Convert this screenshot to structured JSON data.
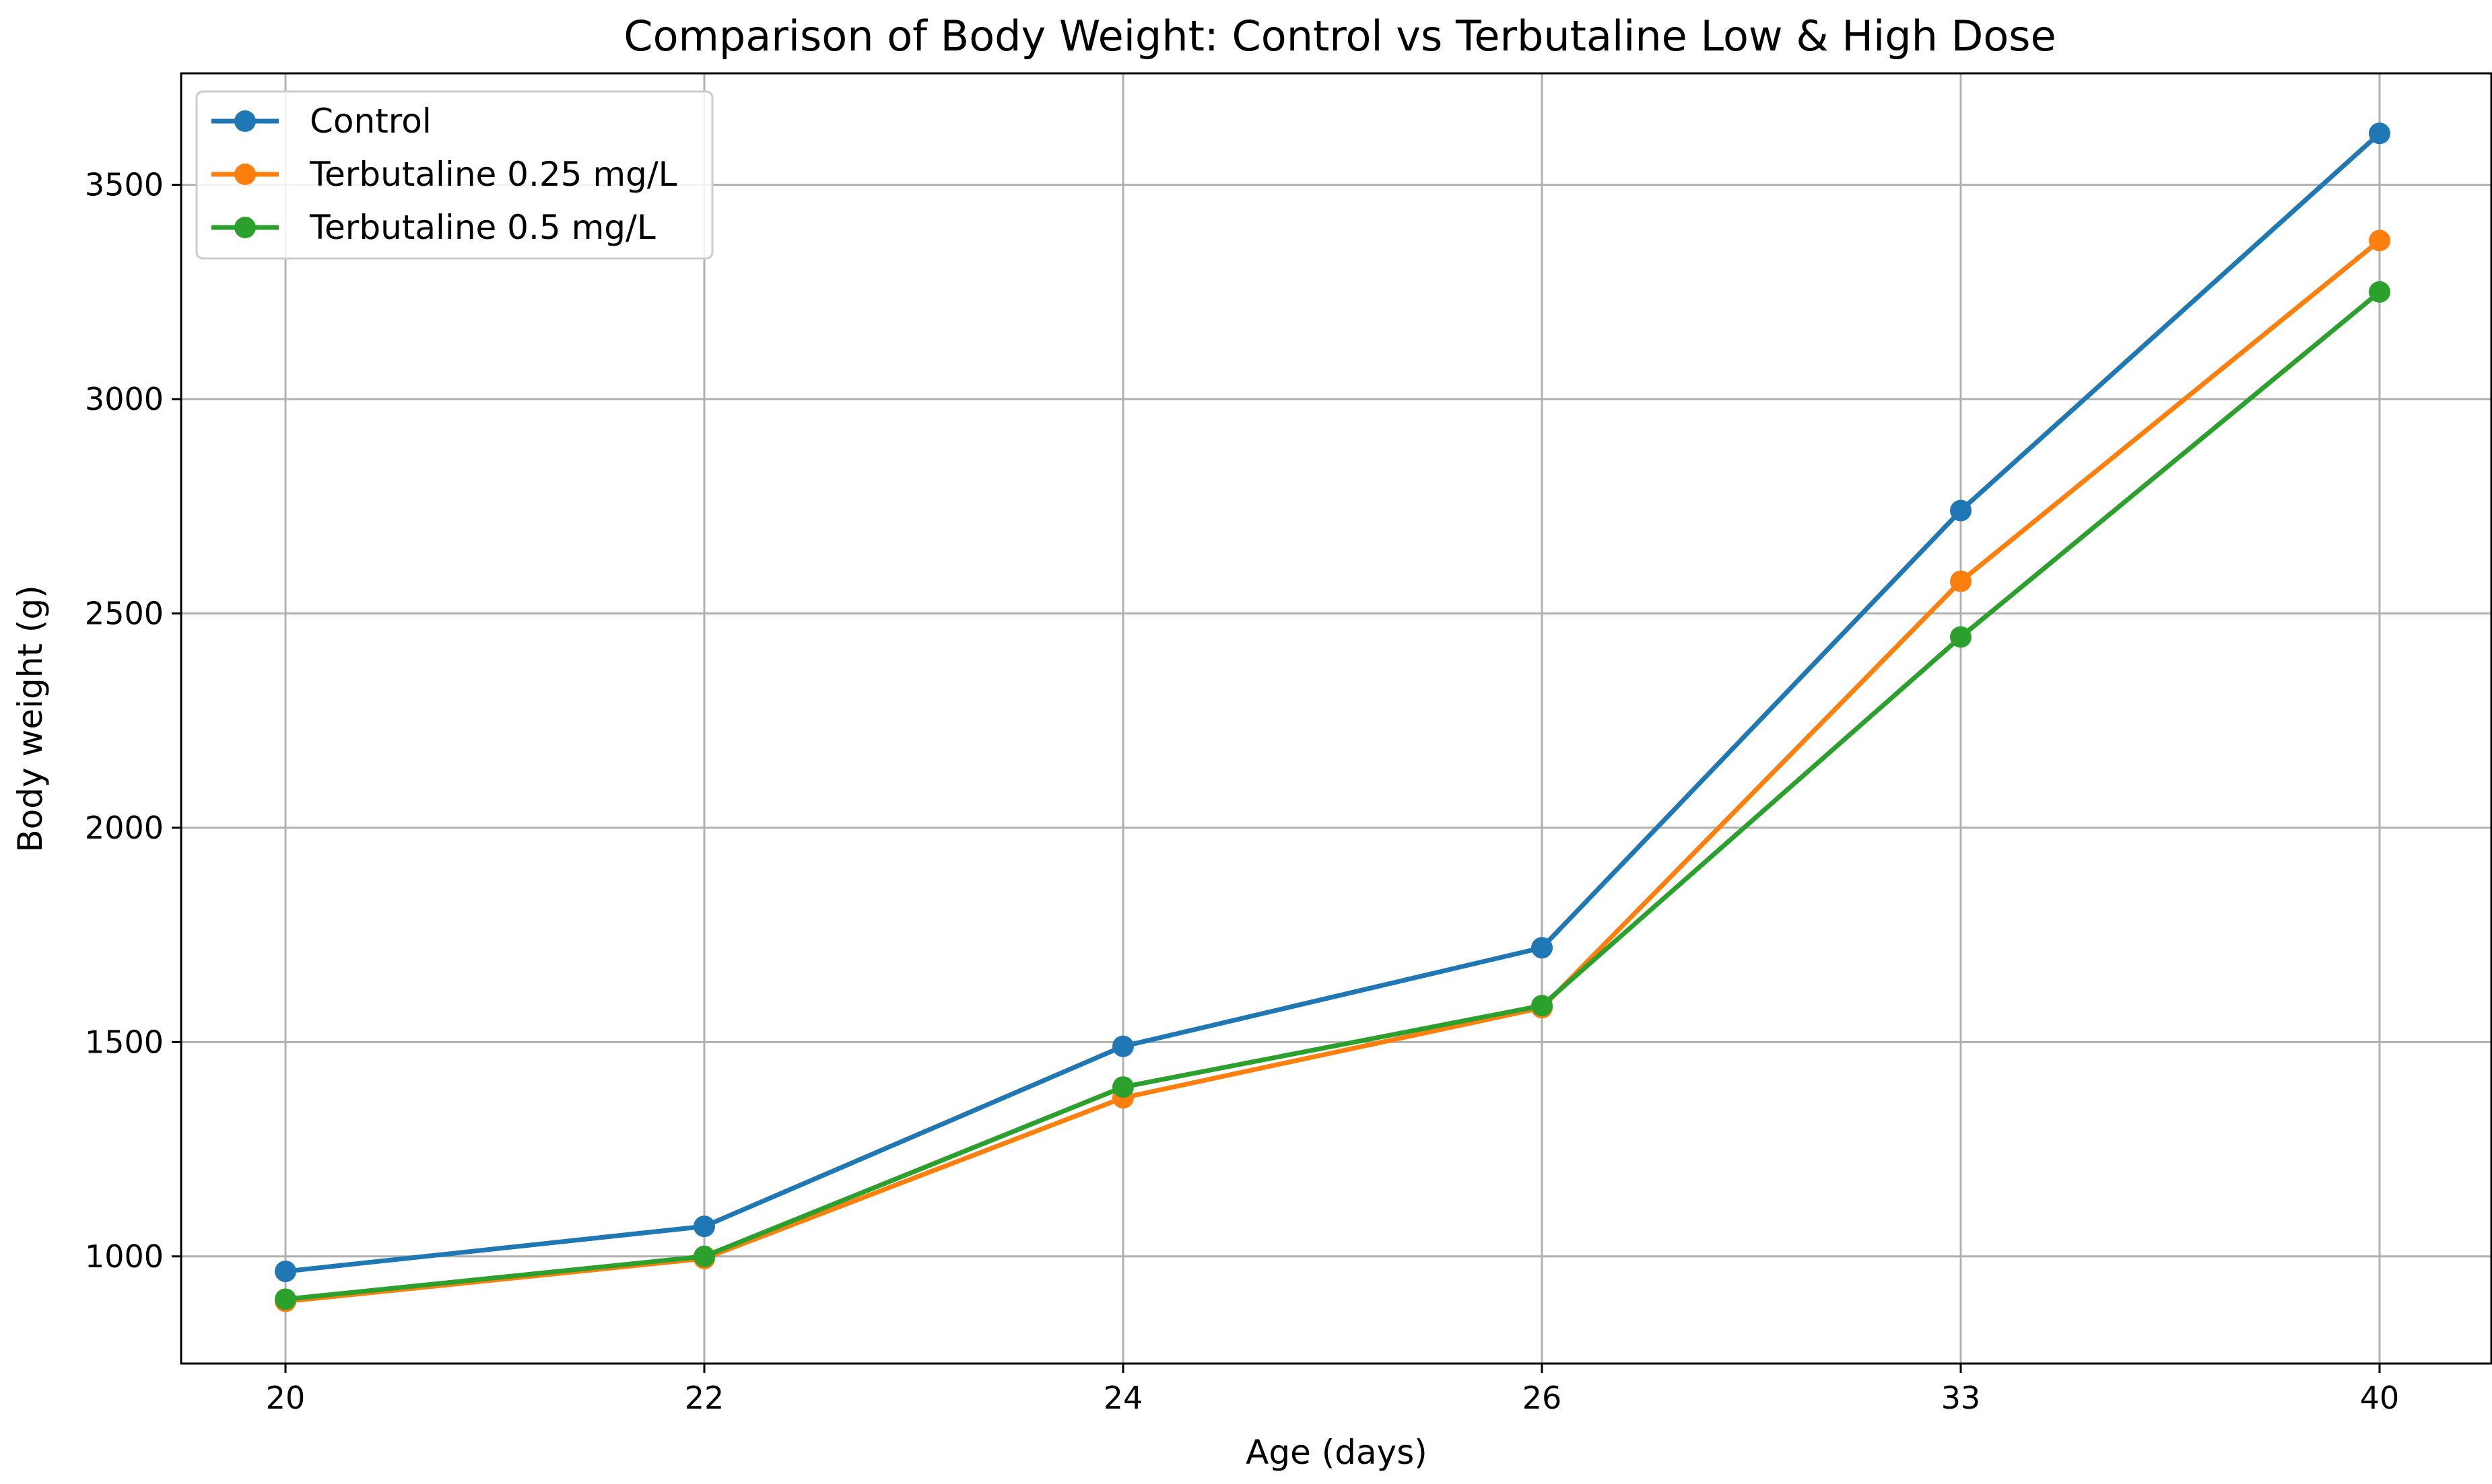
{
  "chart_data": {
    "type": "line",
    "title": "Comparison of Body Weight: Control vs Terbutaline Low & High Dose",
    "xlabel": "Age (days)",
    "ylabel": "Body weight (g)",
    "categories": [
      "20",
      "22",
      "24",
      "26",
      "33",
      "40"
    ],
    "x_scale": "categorical (evenly spaced)",
    "ylim": [
      750,
      3760
    ],
    "yticks": [
      1000,
      1500,
      2000,
      2500,
      3000,
      3500
    ],
    "grid": true,
    "legend_position": "top-left",
    "marker": "circle",
    "series": [
      {
        "name": "Control",
        "color": "#1f77b4",
        "values": [
          965,
          1070,
          1490,
          1720,
          2740,
          3620
        ]
      },
      {
        "name": "Terbutaline 0.25 mg/L",
        "color": "#ff7f0e",
        "values": [
          895,
          995,
          1370,
          1580,
          2575,
          3370
        ]
      },
      {
        "name": "Terbutaline 0.5 mg/L",
        "color": "#2ca02c",
        "values": [
          900,
          1000,
          1395,
          1585,
          2445,
          3250
        ]
      }
    ]
  }
}
